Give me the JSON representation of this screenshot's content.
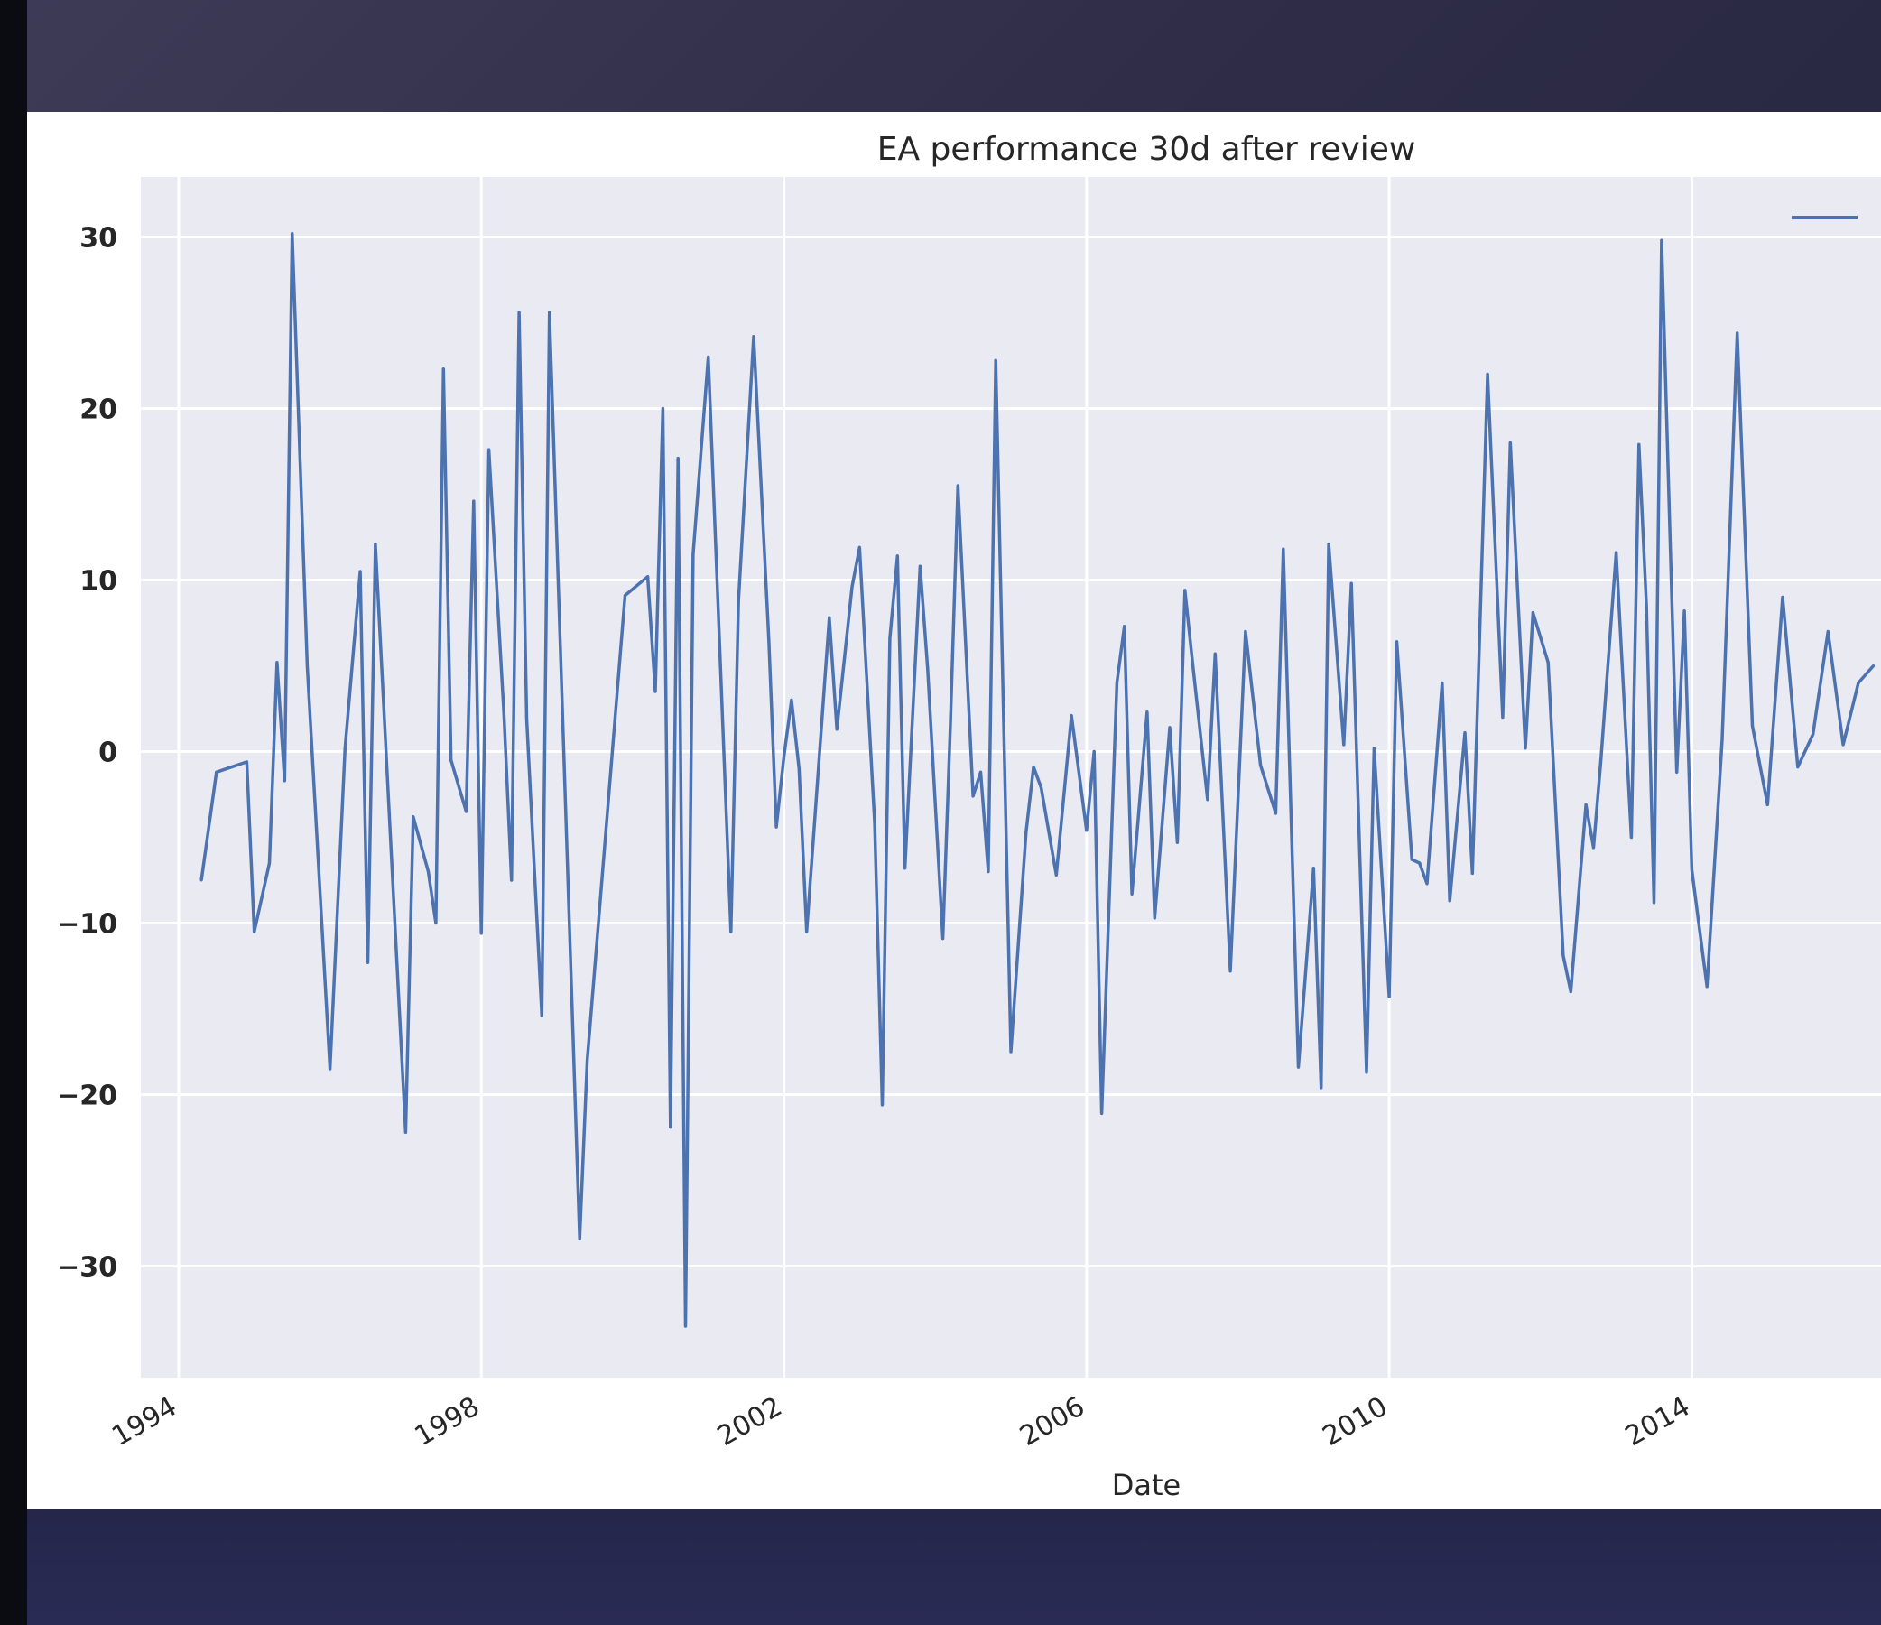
{
  "colors": {
    "plot_background": "#eaeaf2",
    "gridline": "#ffffff",
    "series_line": "#4c72b0",
    "text": "#262626"
  },
  "chart_data": {
    "type": "line",
    "title": "EA performance 30d after review",
    "xlabel": "Date",
    "ylabel": "",
    "xlim": [
      1993.5,
      2016.5
    ],
    "ylim": [
      -36.5,
      33.5
    ],
    "grid": true,
    "legend": "top-right",
    "x_ticks": [
      1994,
      1998,
      2002,
      2006,
      2010,
      2014
    ],
    "x_tick_labels": [
      "1994",
      "1998",
      "2002",
      "2006",
      "2010",
      "2014"
    ],
    "y_ticks": [
      30,
      20,
      10,
      0,
      -10,
      -20,
      -30
    ],
    "y_tick_labels": [
      "30",
      "20",
      "10",
      "0",
      "−10",
      "−20",
      "−30"
    ],
    "series": [
      {
        "name": "",
        "x": [
          1994.3,
          1994.5,
          1994.9,
          1995.0,
          1995.2,
          1995.3,
          1995.4,
          1995.5,
          1995.7,
          1996.0,
          1996.2,
          1996.4,
          1996.5,
          1996.6,
          1997.0,
          1997.1,
          1997.3,
          1997.4,
          1997.5,
          1997.6,
          1997.8,
          1997.9,
          1998.0,
          1998.1,
          1998.3,
          1998.4,
          1998.5,
          1998.6,
          1998.8,
          1998.9,
          1999.3,
          1999.4,
          1999.9,
          2000.2,
          2000.3,
          2000.4,
          2000.5,
          2000.6,
          2000.7,
          2000.8,
          2001.0,
          2001.3,
          2001.4,
          2001.6,
          2001.8,
          2001.9,
          2002.0,
          2002.1,
          2002.2,
          2002.3,
          2002.6,
          2002.7,
          2002.9,
          2003.0,
          2003.2,
          2003.3,
          2003.4,
          2003.5,
          2003.6,
          2003.8,
          2003.9,
          2004.1,
          2004.2,
          2004.3,
          2004.5,
          2004.6,
          2004.7,
          2004.8,
          2005.0,
          2005.2,
          2005.3,
          2005.4,
          2005.6,
          2005.8,
          2006.0,
          2006.1,
          2006.2,
          2006.4,
          2006.5,
          2006.6,
          2006.8,
          2006.9,
          2007.1,
          2007.2,
          2007.3,
          2007.4,
          2007.6,
          2007.7,
          2007.9,
          2008.1,
          2008.3,
          2008.5,
          2008.6,
          2008.8,
          2009.0,
          2009.1,
          2009.2,
          2009.4,
          2009.5,
          2009.7,
          2009.8,
          2010.0,
          2010.1,
          2010.3,
          2010.4,
          2010.5,
          2010.7,
          2010.8,
          2011.0,
          2011.1,
          2011.3,
          2011.5,
          2011.6,
          2011.8,
          2011.9,
          2012.1,
          2012.3,
          2012.4,
          2012.6,
          2012.7,
          2012.8,
          2013.0,
          2013.2,
          2013.3,
          2013.4,
          2013.5,
          2013.6,
          2013.8,
          2013.9,
          2014.0,
          2014.2,
          2014.4,
          2014.6,
          2014.8,
          2015.0,
          2015.2,
          2015.4,
          2015.6,
          2015.8,
          2016.0,
          2016.2,
          2016.4
        ],
        "values": [
          -7.5,
          -1.2,
          -0.6,
          -10.5,
          -6.5,
          5.2,
          -1.7,
          30.2,
          5.0,
          -18.5,
          0.2,
          10.5,
          -12.3,
          12.1,
          -22.2,
          -3.8,
          -7.0,
          -10.0,
          22.3,
          -0.5,
          -3.5,
          14.6,
          -10.6,
          17.6,
          2.1,
          -7.5,
          25.6,
          1.9,
          -15.4,
          25.6,
          -28.4,
          -18.0,
          9.1,
          10.2,
          3.5,
          20.0,
          -21.9,
          17.1,
          -33.5,
          11.5,
          23.0,
          -10.5,
          8.8,
          24.2,
          6.5,
          -4.4,
          -0.3,
          3.0,
          -1.0,
          -10.5,
          7.8,
          1.3,
          9.6,
          11.9,
          -4.2,
          -20.6,
          6.6,
          11.4,
          -6.8,
          10.8,
          4.8,
          -10.9,
          1.5,
          15.5,
          -2.6,
          -1.2,
          -7.0,
          22.8,
          -17.5,
          -4.7,
          -0.9,
          -2.1,
          -7.2,
          2.1,
          -4.6,
          0.0,
          -21.1,
          4.0,
          7.3,
          -8.3,
          2.3,
          -9.7,
          1.4,
          -5.3,
          9.4,
          5.2,
          -2.8,
          5.7,
          -12.8,
          7.0,
          -0.8,
          -3.6,
          11.8,
          -18.4,
          -6.8,
          -19.6,
          12.1,
          0.4,
          9.8,
          -18.7,
          0.2,
          -14.3,
          6.4,
          -6.3,
          -6.5,
          -7.7,
          4.0,
          -8.7,
          1.1,
          -7.1,
          22.0,
          2.0,
          18.0,
          0.2,
          8.1,
          5.2,
          -11.9,
          -14.0,
          -3.1,
          -5.6,
          -0.4,
          11.6,
          -5.0,
          17.9,
          8.5,
          -8.8,
          29.8,
          -1.2,
          8.2,
          -6.9,
          -13.7,
          0.7,
          24.4,
          1.5,
          -3.1,
          9.0,
          -0.9,
          1.0,
          7.0,
          0.4,
          4.0,
          5.0
        ]
      }
    ]
  }
}
